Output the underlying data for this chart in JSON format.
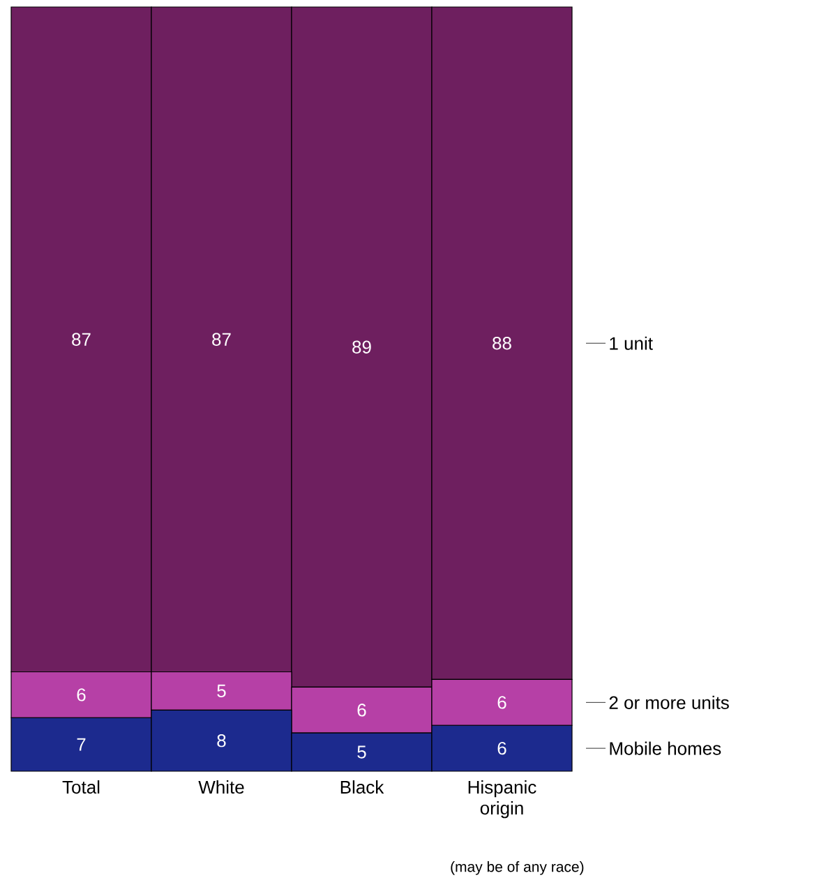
{
  "chart_data": {
    "type": "bar",
    "stacked": true,
    "data_labels": true,
    "legend": "right",
    "categories": [
      "Total",
      "White",
      "Black",
      "Hispanic origin"
    ],
    "series": [
      {
        "name": "Mobile homes",
        "color": "#1c2a8e",
        "values": [
          7,
          8,
          5,
          6
        ]
      },
      {
        "name": "2 or more units",
        "color": "#b640a6",
        "values": [
          6,
          5,
          6,
          6
        ]
      },
      {
        "name": "1 unit",
        "color": "#6e1f5f",
        "values": [
          87,
          87,
          89,
          88
        ]
      }
    ],
    "annotations": [
      "(may be of any race)"
    ]
  }
}
